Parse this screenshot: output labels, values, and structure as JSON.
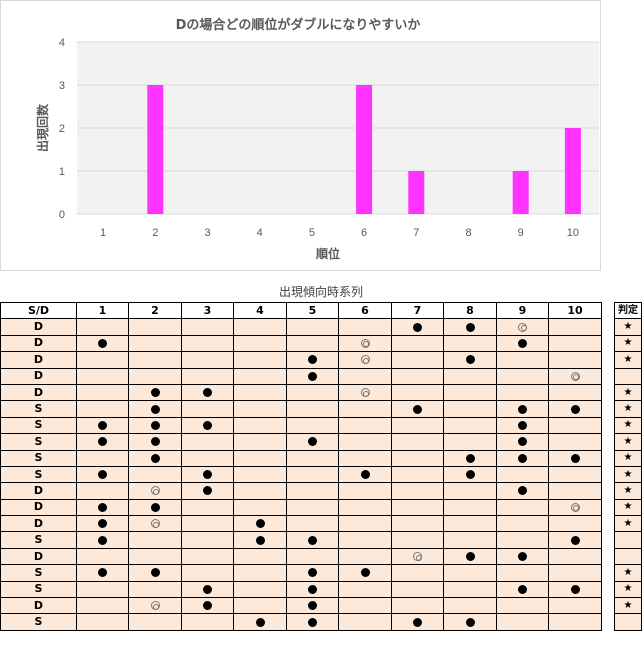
{
  "chart_data": {
    "type": "bar",
    "title": "Dの場合どの順位がダブルになりやすいか",
    "xlabel": "順位",
    "ylabel": "出現回数",
    "categories": [
      "1",
      "2",
      "3",
      "4",
      "5",
      "6",
      "7",
      "8",
      "9",
      "10"
    ],
    "values": [
      0,
      3,
      0,
      0,
      0,
      3,
      1,
      0,
      1,
      2
    ],
    "ylim": [
      0,
      4
    ],
    "yticks": [
      "0",
      "1",
      "2",
      "3",
      "4"
    ],
    "grid": true,
    "bar_color": "#ff33ff"
  },
  "table": {
    "title": "出現傾向時系列",
    "headers": [
      "S/D",
      "1",
      "2",
      "3",
      "4",
      "5",
      "6",
      "7",
      "8",
      "9",
      "10"
    ],
    "rows": [
      {
        "sd": "D",
        "cells": [
          "",
          "",
          "",
          "",
          "",
          "",
          "●",
          "●",
          "◎",
          ""
        ]
      },
      {
        "sd": "D",
        "cells": [
          "●",
          "",
          "",
          "",
          "",
          "◎",
          "",
          "",
          "●",
          ""
        ]
      },
      {
        "sd": "D",
        "cells": [
          "",
          "",
          "",
          "",
          "●",
          "◎",
          "",
          "●",
          "",
          ""
        ]
      },
      {
        "sd": "D",
        "cells": [
          "",
          "",
          "",
          "",
          "●",
          "",
          "",
          "",
          "",
          "◎"
        ]
      },
      {
        "sd": "D",
        "cells": [
          "",
          "●",
          "●",
          "",
          "",
          "◎",
          "",
          "",
          "",
          ""
        ]
      },
      {
        "sd": "S",
        "cells": [
          "",
          "●",
          "",
          "",
          "",
          "",
          "●",
          "",
          "●",
          "●"
        ]
      },
      {
        "sd": "S",
        "cells": [
          "●",
          "●",
          "●",
          "",
          "",
          "",
          "",
          "",
          "●",
          ""
        ]
      },
      {
        "sd": "S",
        "cells": [
          "●",
          "●",
          "",
          "",
          "●",
          "",
          "",
          "",
          "●",
          ""
        ]
      },
      {
        "sd": "S",
        "cells": [
          "",
          "●",
          "",
          "",
          "",
          "",
          "",
          "●",
          "●",
          "●"
        ]
      },
      {
        "sd": "S",
        "cells": [
          "●",
          "",
          "●",
          "",
          "",
          "●",
          "",
          "●",
          "",
          ""
        ]
      },
      {
        "sd": "D",
        "cells": [
          "",
          "◎",
          "●",
          "",
          "",
          "",
          "",
          "",
          "●",
          ""
        ]
      },
      {
        "sd": "D",
        "cells": [
          "●",
          "●",
          "",
          "",
          "",
          "",
          "",
          "",
          "",
          "◎"
        ]
      },
      {
        "sd": "D",
        "cells": [
          "●",
          "◎",
          "",
          "●",
          "",
          "",
          "",
          "",
          "",
          ""
        ]
      },
      {
        "sd": "S",
        "cells": [
          "●",
          "",
          "",
          "●",
          "●",
          "",
          "",
          "",
          "",
          "●"
        ]
      },
      {
        "sd": "D",
        "cells": [
          "",
          "",
          "",
          "",
          "",
          "",
          "◎",
          "●",
          "●",
          ""
        ]
      },
      {
        "sd": "S",
        "cells": [
          "●",
          "●",
          "",
          "",
          "●",
          "●",
          "",
          "",
          "",
          ""
        ]
      },
      {
        "sd": "S",
        "cells": [
          "",
          "",
          "●",
          "",
          "●",
          "",
          "",
          "",
          "●",
          "●"
        ]
      },
      {
        "sd": "D",
        "cells": [
          "",
          "◎",
          "●",
          "",
          "●",
          "",
          "",
          "",
          "",
          ""
        ]
      },
      {
        "sd": "S",
        "cells": [
          "",
          "",
          "",
          "●",
          "●",
          "",
          "●",
          "●",
          "",
          ""
        ]
      }
    ],
    "judge_header": "判定",
    "judge": [
      "★",
      "★",
      "★",
      "",
      "★",
      "★",
      "★",
      "★",
      "★",
      "★",
      "★",
      "★",
      "★",
      "",
      "",
      "★",
      "★",
      "★",
      ""
    ]
  }
}
